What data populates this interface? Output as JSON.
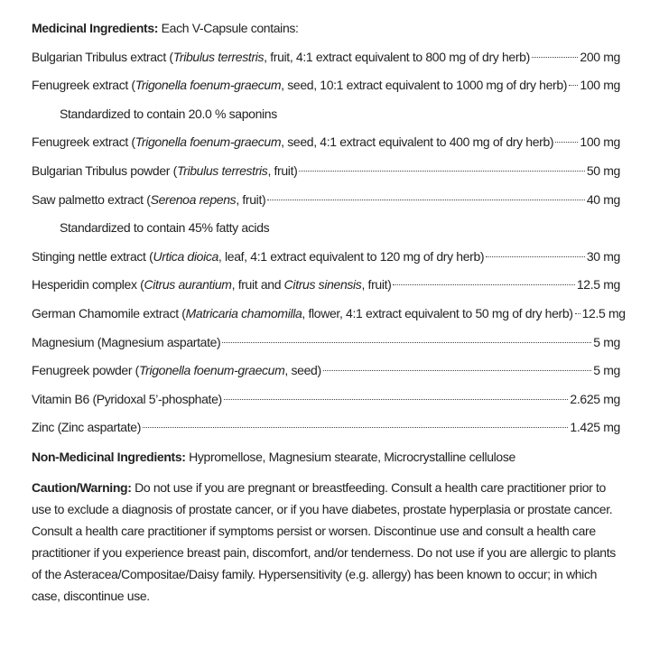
{
  "medicinal": {
    "label": "Medicinal Ingredients:",
    "intro": "Each V-Capsule contains:",
    "items": [
      {
        "parts": [
          "Bulgarian Tribulus extract (",
          "Tribulus terrestris",
          ", fruit, 4:1 extract equivalent to 800 mg of dry herb)"
        ],
        "amount": "200 mg"
      },
      {
        "parts": [
          "Fenugreek extract (",
          "Trigonella foenum-graecum",
          ", seed, 10:1 extract equivalent to 1000 mg of dry herb)"
        ],
        "amount": "100 mg",
        "note": "Standardized to contain 20.0 % saponins"
      },
      {
        "parts": [
          "Fenugreek extract  (",
          "Trigonella foenum-graecum",
          ", seed, 4:1 extract equivalent to 400 mg of dry herb)"
        ],
        "amount": "100 mg"
      },
      {
        "parts": [
          "Bulgarian Tribulus powder (",
          "Tribulus terrestris",
          ", fruit)"
        ],
        "amount": "50 mg"
      },
      {
        "parts": [
          "Saw palmetto extract (",
          "Serenoa repens",
          ", fruit)"
        ],
        "amount": "40 mg",
        "note": "Standardized to contain 45% fatty acids"
      },
      {
        "parts": [
          "Stinging nettle extract (",
          "Urtica dioica",
          ", leaf, 4:1 extract equivalent to 120 mg of dry herb)"
        ],
        "amount": "30 mg"
      },
      {
        "parts": [
          "Hesperidin complex (",
          "Citrus aurantium",
          ", fruit and ",
          "Citrus sinensis",
          ", fruit)"
        ],
        "amount": "12.5 mg"
      },
      {
        "parts": [
          "German Chamomile extract  (",
          "Matricaria chamomilla",
          ", flower, 4:1 extract equivalent to 50 mg of dry herb)"
        ],
        "amount": "12.5 mg"
      },
      {
        "parts": [
          "Magnesium (Magnesium aspartate)"
        ],
        "amount": "5 mg"
      },
      {
        "parts": [
          "Fenugreek powder (",
          "Trigonella foenum-graecum",
          ", seed)"
        ],
        "amount": "5 mg"
      },
      {
        "parts": [
          "Vitamin B6 (Pyridoxal 5’-phosphate)"
        ],
        "amount": "2.625 mg"
      },
      {
        "parts": [
          "Zinc (Zinc aspartate)"
        ],
        "amount": "1.425 mg"
      }
    ]
  },
  "non_medicinal": {
    "label": "Non-Medicinal Ingredients:",
    "text": "Hypromellose, Magnesium stearate, Microcrystalline cellulose"
  },
  "caution": {
    "label": "Caution/Warning:",
    "text": "Do not use if you are pregnant or breastfeeding. Consult a health care practitioner prior to use to exclude a diagnosis of prostate cancer, or if you have diabetes, prostate hyperplasia or prostate cancer. Consult a health care practitioner if symptoms persist or worsen. Discontinue use and consult a health care practitioner if you experience breast pain, discomfort, and/or tenderness. Do not use if you are allergic to plants of the Asteracea/Compositae/Daisy family. Hypersensitivity (e.g. allergy) has been known to occur; in which case, discontinue use."
  }
}
